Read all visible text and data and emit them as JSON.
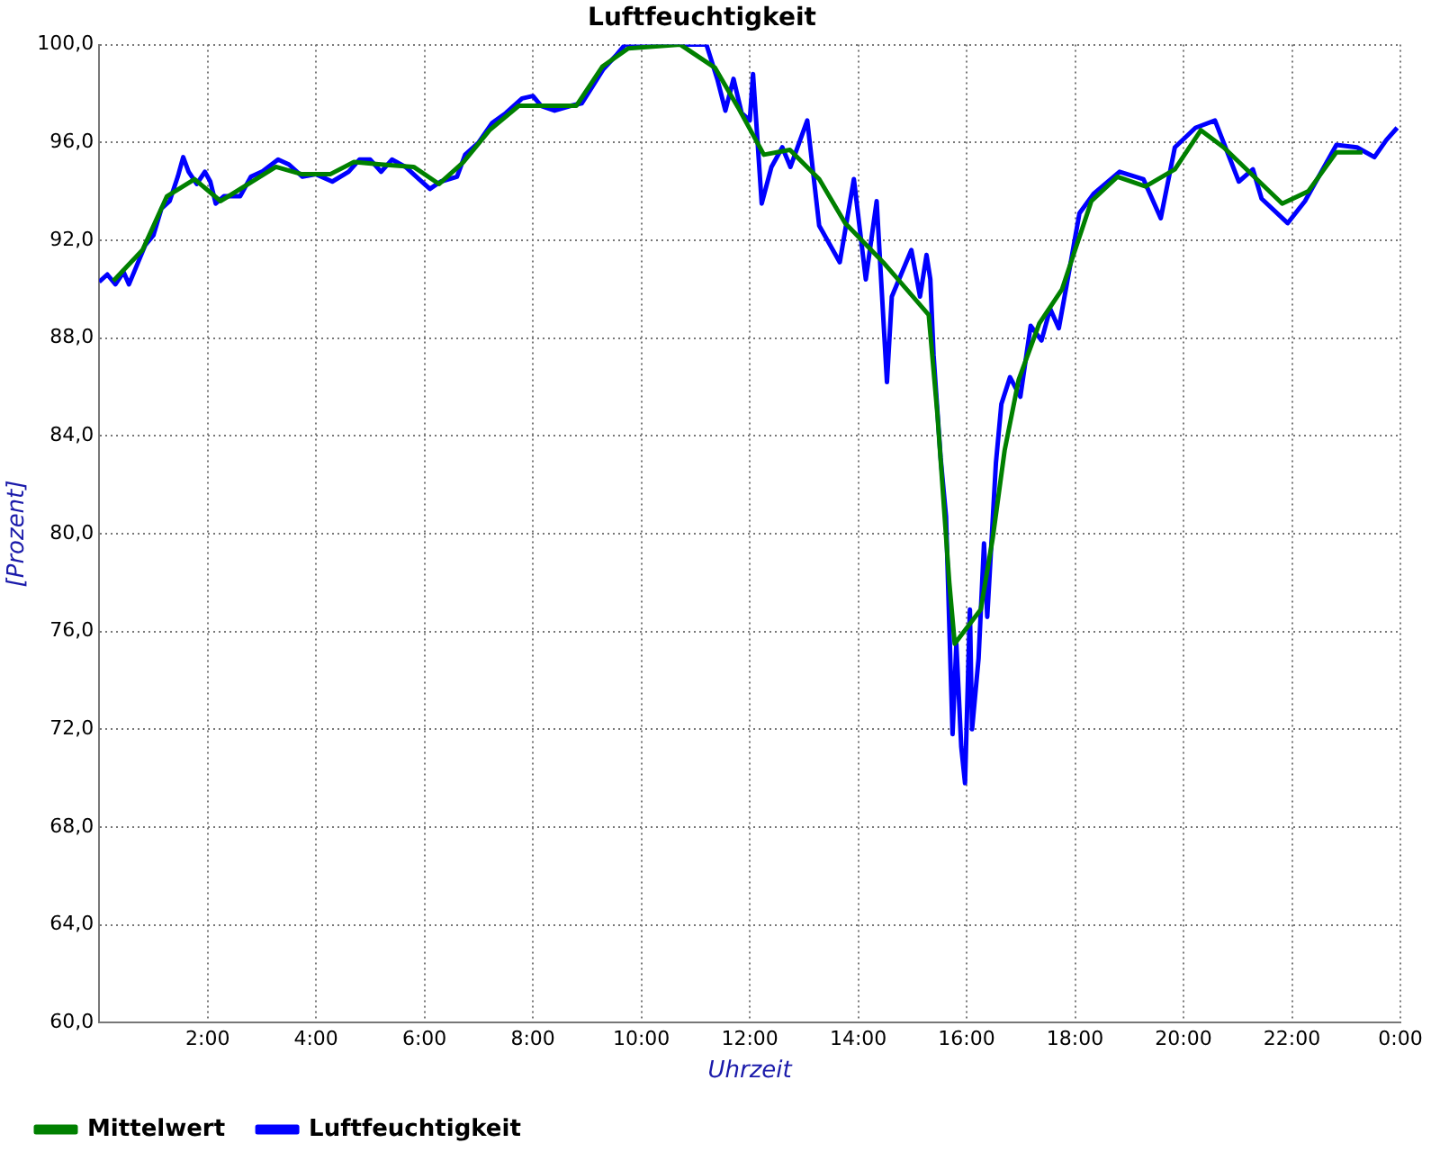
{
  "chart_data": {
    "type": "line",
    "title": "Luftfeuchtigkeit",
    "xlabel": "Uhrzeit",
    "ylabel": "[Prozent]",
    "xlim": [
      0,
      24
    ],
    "xticks": [
      {
        "value": 0,
        "label": null
      },
      {
        "value": 2,
        "label": "2:00"
      },
      {
        "value": 4,
        "label": "4:00"
      },
      {
        "value": 6,
        "label": "6:00"
      },
      {
        "value": 8,
        "label": "8:00"
      },
      {
        "value": 10,
        "label": "10:00"
      },
      {
        "value": 12,
        "label": "12:00"
      },
      {
        "value": 14,
        "label": "14:00"
      },
      {
        "value": 16,
        "label": "16:00"
      },
      {
        "value": 18,
        "label": "18:00"
      },
      {
        "value": 20,
        "label": "20:00"
      },
      {
        "value": 22,
        "label": "22:00"
      },
      {
        "value": 24,
        "label": "0:00"
      }
    ],
    "ylim": [
      60,
      100
    ],
    "yticks": [
      {
        "value": 60,
        "label": "60,0"
      },
      {
        "value": 64,
        "label": "64,0"
      },
      {
        "value": 68,
        "label": "68,0"
      },
      {
        "value": 72,
        "label": "72,0"
      },
      {
        "value": 76,
        "label": "76,0"
      },
      {
        "value": 80,
        "label": "80,0"
      },
      {
        "value": 84,
        "label": "84,0"
      },
      {
        "value": 88,
        "label": "88,0"
      },
      {
        "value": 92,
        "label": "92,0"
      },
      {
        "value": 96,
        "label": "96,0"
      },
      {
        "value": 100,
        "label": "100,0"
      }
    ],
    "grid": true,
    "legend": "bottom left",
    "marker": "none",
    "line_style": "solid",
    "series": [
      {
        "name": "Luftfeuchtigkeit",
        "color": "#0000ff",
        "x": [
          0,
          0.15,
          0.3,
          0.45,
          0.55,
          0.7,
          0.85,
          1.0,
          1.15,
          1.3,
          1.45,
          1.55,
          1.65,
          1.8,
          1.95,
          2.05,
          2.15,
          2.3,
          2.6,
          2.8,
          3.0,
          3.3,
          3.5,
          3.75,
          4.0,
          4.3,
          4.6,
          4.8,
          5.0,
          5.2,
          5.4,
          5.65,
          5.9,
          6.1,
          6.3,
          6.6,
          6.75,
          7.0,
          7.25,
          7.5,
          7.8,
          8.0,
          8.15,
          8.4,
          8.7,
          8.9,
          9.1,
          9.3,
          9.55,
          9.7,
          10.0,
          10.9,
          11.2,
          11.4,
          11.55,
          11.7,
          11.85,
          12.0,
          12.06,
          12.22,
          12.4,
          12.6,
          12.75,
          13.06,
          13.28,
          13.66,
          13.92,
          14.14,
          14.34,
          14.53,
          14.62,
          14.98,
          15.14,
          15.26,
          15.33,
          15.39,
          15.52,
          15.62,
          15.74,
          15.81,
          15.9,
          15.97,
          16.06,
          16.1,
          16.22,
          16.32,
          16.38,
          16.54,
          16.64,
          16.8,
          16.99,
          17.18,
          17.38,
          17.54,
          17.7,
          17.92,
          18.08,
          18.34,
          18.82,
          19.26,
          19.58,
          19.84,
          20.22,
          20.58,
          21.02,
          21.28,
          21.44,
          21.92,
          22.24,
          22.82,
          23.2,
          23.52,
          23.74,
          23.94
        ],
        "values": [
          90.3,
          90.6,
          90.2,
          90.7,
          90.2,
          91.0,
          91.8,
          92.2,
          93.3,
          93.6,
          94.6,
          95.4,
          94.8,
          94.3,
          94.8,
          94.4,
          93.5,
          93.8,
          93.8,
          94.6,
          94.8,
          95.3,
          95.1,
          94.6,
          94.7,
          94.4,
          94.8,
          95.3,
          95.3,
          94.8,
          95.3,
          95.0,
          94.5,
          94.1,
          94.4,
          94.6,
          95.5,
          96.0,
          96.8,
          97.2,
          97.8,
          97.9,
          97.5,
          97.3,
          97.5,
          97.6,
          98.3,
          99.0,
          99.6,
          100,
          100,
          100,
          100,
          98.6,
          97.3,
          98.6,
          97.2,
          96.9,
          98.8,
          93.5,
          95.0,
          95.8,
          95.0,
          96.9,
          92.6,
          91.1,
          94.5,
          90.4,
          93.6,
          86.2,
          89.7,
          91.6,
          89.7,
          91.4,
          90.4,
          87.3,
          83.1,
          80.7,
          71.8,
          75.5,
          71.3,
          69.8,
          76.9,
          72.0,
          74.9,
          79.6,
          76.6,
          82.9,
          85.3,
          86.4,
          85.6,
          88.5,
          87.9,
          89.2,
          88.4,
          91.1,
          93.1,
          93.9,
          94.8,
          94.5,
          92.9,
          95.8,
          96.6,
          96.9,
          94.4,
          94.9,
          93.7,
          92.7,
          93.6,
          95.9,
          95.8,
          95.4,
          96.1,
          96.6
        ]
      },
      {
        "name": "Mittelwert",
        "color": "#008000",
        "x": [
          0.26,
          0.8,
          1.25,
          1.76,
          2.24,
          3.26,
          3.74,
          4.26,
          4.7,
          5.2,
          5.8,
          6.27,
          6.72,
          7.2,
          7.74,
          8.8,
          9.28,
          9.76,
          10.72,
          11.36,
          11.78,
          12.26,
          12.74,
          13.28,
          13.76,
          14.46,
          15.3,
          15.46,
          15.68,
          15.78,
          16.26,
          16.48,
          16.7,
          16.96,
          17.34,
          17.76,
          18.0,
          18.3,
          18.78,
          19.3,
          19.84,
          20.32,
          20.74,
          21.82,
          22.3,
          22.82,
          23.3
        ],
        "values": [
          90.33,
          91.6,
          93.8,
          94.5,
          93.6,
          95.0,
          94.7,
          94.7,
          95.2,
          95.1,
          95.0,
          94.3,
          95.2,
          96.5,
          97.5,
          97.5,
          99.1,
          99.85,
          100,
          99.05,
          97.45,
          95.5,
          95.7,
          94.5,
          92.7,
          91.1,
          88.95,
          84.9,
          78.0,
          75.5,
          76.9,
          79.8,
          83.4,
          86.3,
          88.6,
          90.0,
          91.6,
          93.6,
          94.6,
          94.2,
          94.9,
          96.5,
          95.8,
          93.5,
          94.0,
          95.6,
          95.6
        ]
      }
    ]
  }
}
